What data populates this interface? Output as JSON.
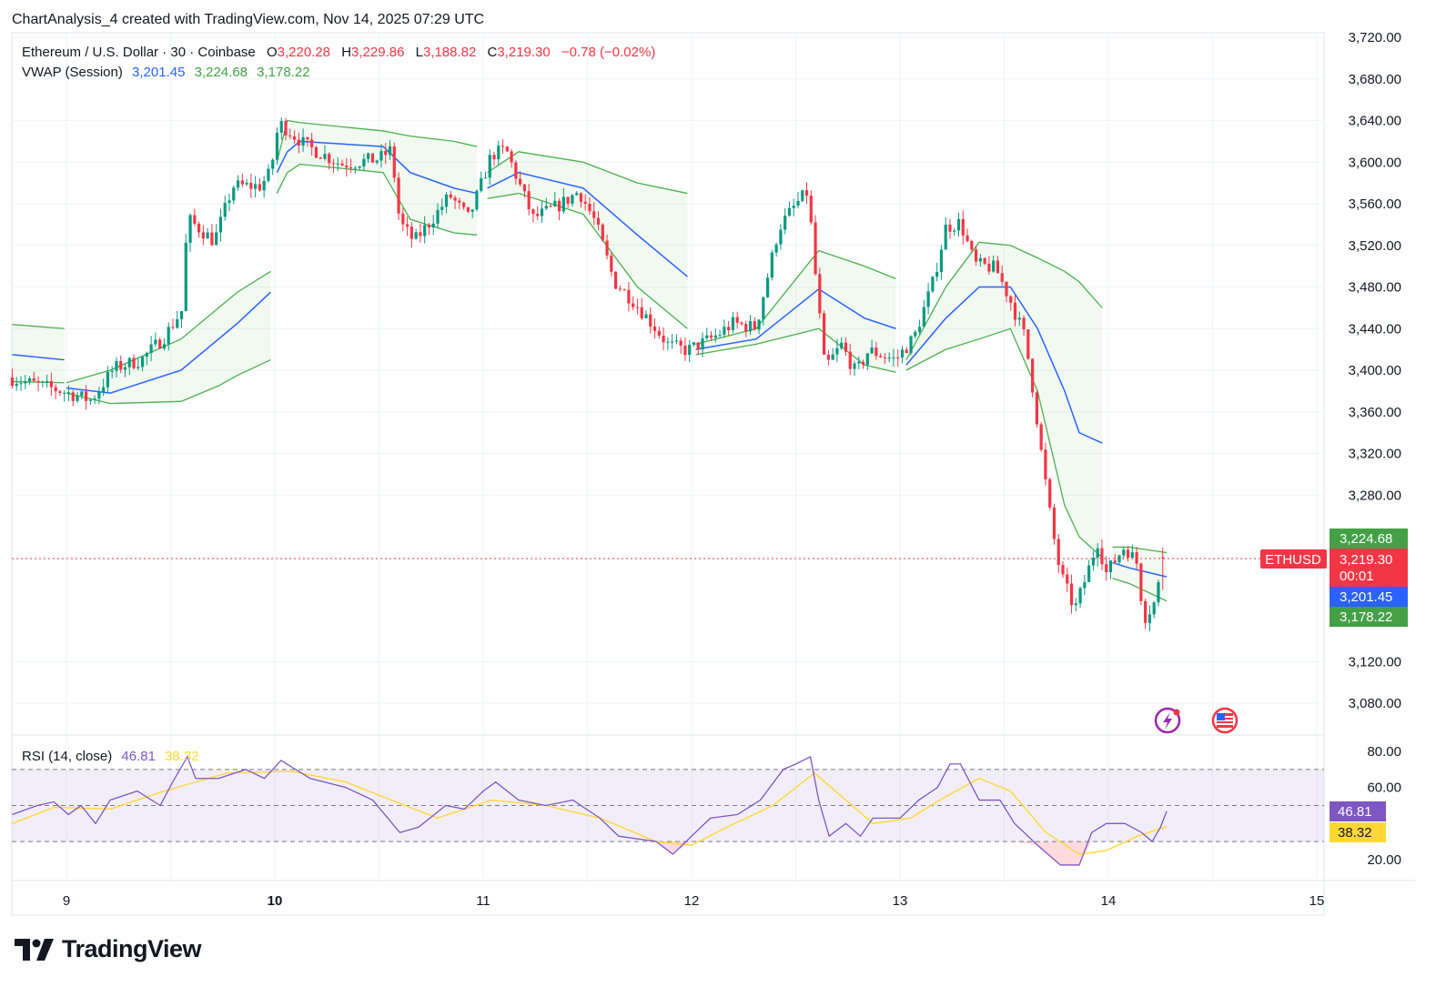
{
  "caption": "ChartAnalysis_4 created with TradingView.com, Nov 14, 2025 07:29 UTC",
  "legend": {
    "symbol": "Ethereum / U.S. Dollar · 30 · Coinbase",
    "o_label": "O",
    "o": "3,220.28",
    "h_label": "H",
    "h": "3,229.86",
    "l_label": "L",
    "l": "3,188.82",
    "c_label": "C",
    "c": "3,219.30",
    "change": "−0.78 (−0.02%)",
    "vwap_label": "VWAP (Session)",
    "vwap_mid": "3,201.45",
    "vwap_upper": "3,224.68",
    "vwap_lower": "3,178.22",
    "rsi_label": "RSI (14, close)",
    "rsi": "46.81",
    "rsi_ma": "38.32"
  },
  "price_tags": {
    "symbol": "ETHUSD",
    "last": "3,219.30",
    "countdown": "00:01",
    "vwap_upper": "3,224.68",
    "vwap_mid": "3,201.45",
    "vwap_lower": "3,178.22",
    "rsi": "46.81",
    "rsi_ma": "38.32"
  },
  "icons": [
    "lightning-icon",
    "us-flag-icon"
  ],
  "logo_text": "TradingView",
  "colors": {
    "up": "#089981",
    "down": "#f23645",
    "vwap": "#2962ff",
    "band": "#4caf50",
    "rsi": "#7e57c2",
    "rsi_ma": "#fdd835"
  },
  "chart_data": [
    {
      "type": "candlestick",
      "title": "Ethereum / U.S. Dollar · 30 · Coinbase",
      "x_ticks": [
        "9",
        "10",
        "11",
        "12",
        "13",
        "14",
        "15"
      ],
      "x_range_days": [
        8.74,
        15.05
      ],
      "y_ticks": [
        "3,720.00",
        "3,680.00",
        "3,640.00",
        "3,600.00",
        "3,560.00",
        "3,520.00",
        "3,480.00",
        "3,440.00",
        "3,400.00",
        "3,360.00",
        "3,320.00",
        "3,280.00",
        "3,120.00",
        "3,080.00"
      ],
      "ylim": [
        3080,
        3720
      ],
      "grid": true,
      "last_candle": {
        "open": 3220.28,
        "high": 3229.86,
        "low": 3188.82,
        "close": 3219.3
      },
      "close_series": [
        [
          8.74,
          3393
        ],
        [
          9.0,
          3380
        ],
        [
          9.14,
          3371
        ],
        [
          9.25,
          3402
        ],
        [
          9.38,
          3410
        ],
        [
          9.49,
          3432
        ],
        [
          9.58,
          3459
        ],
        [
          9.6,
          3546
        ],
        [
          9.73,
          3524
        ],
        [
          9.82,
          3577
        ],
        [
          9.95,
          3577
        ],
        [
          10.0,
          3590
        ],
        [
          10.04,
          3638
        ],
        [
          10.17,
          3616
        ],
        [
          10.34,
          3598
        ],
        [
          10.52,
          3603
        ],
        [
          10.58,
          3612
        ],
        [
          10.62,
          3542
        ],
        [
          10.69,
          3524
        ],
        [
          10.78,
          3546
        ],
        [
          10.86,
          3568
        ],
        [
          10.95,
          3546
        ],
        [
          11.0,
          3572
        ],
        [
          11.06,
          3607
        ],
        [
          11.13,
          3612
        ],
        [
          11.19,
          3581
        ],
        [
          11.26,
          3546
        ],
        [
          11.39,
          3559
        ],
        [
          11.48,
          3572
        ],
        [
          11.56,
          3542
        ],
        [
          11.65,
          3485
        ],
        [
          11.74,
          3467
        ],
        [
          11.83,
          3445
        ],
        [
          11.91,
          3424
        ],
        [
          12.0,
          3419
        ],
        [
          12.13,
          3432
        ],
        [
          12.22,
          3445
        ],
        [
          12.33,
          3441
        ],
        [
          12.39,
          3494
        ],
        [
          12.44,
          3537
        ],
        [
          12.52,
          3559
        ],
        [
          12.58,
          3572
        ],
        [
          12.61,
          3502
        ],
        [
          12.66,
          3402
        ],
        [
          12.74,
          3424
        ],
        [
          12.81,
          3397
        ],
        [
          12.87,
          3419
        ],
        [
          13.0,
          3410
        ],
        [
          13.09,
          3432
        ],
        [
          13.18,
          3485
        ],
        [
          13.24,
          3537
        ],
        [
          13.31,
          3542
        ],
        [
          13.38,
          3502
        ],
        [
          13.48,
          3498
        ],
        [
          13.55,
          3467
        ],
        [
          13.62,
          3432
        ],
        [
          13.66,
          3380
        ],
        [
          13.7,
          3319
        ],
        [
          13.75,
          3249
        ],
        [
          13.79,
          3205
        ],
        [
          13.86,
          3170
        ],
        [
          13.92,
          3205
        ],
        [
          13.97,
          3236
        ],
        [
          14.01,
          3205
        ],
        [
          14.1,
          3231
        ],
        [
          14.16,
          3214
        ],
        [
          14.19,
          3161
        ],
        [
          14.25,
          3179
        ],
        [
          14.28,
          3219.3
        ]
      ],
      "vwap_sessions": [
        [
          [
            8.74,
            3444,
            3415,
            3389
          ],
          [
            8.99,
            3440,
            3410,
            3388
          ]
        ],
        [
          [
            9.0,
            3388,
            3383,
            3378
          ],
          [
            9.21,
            3400,
            3378,
            3368
          ],
          [
            9.55,
            3430,
            3400,
            3370
          ],
          [
            9.73,
            3460,
            3430,
            3385
          ],
          [
            9.82,
            3475,
            3445,
            3395
          ],
          [
            9.98,
            3495,
            3475,
            3410
          ]
        ],
        [
          [
            10.01,
            3600,
            3590,
            3570
          ],
          [
            10.06,
            3640,
            3610,
            3590
          ],
          [
            10.12,
            3638,
            3620,
            3598
          ],
          [
            10.52,
            3630,
            3615,
            3590
          ],
          [
            10.65,
            3625,
            3590,
            3545
          ],
          [
            10.86,
            3620,
            3575,
            3532
          ],
          [
            10.97,
            3615,
            3570,
            3530
          ]
        ],
        [
          [
            11.02,
            3590,
            3575,
            3565
          ],
          [
            11.17,
            3610,
            3590,
            3570
          ],
          [
            11.48,
            3600,
            3575,
            3550
          ],
          [
            11.74,
            3580,
            3530,
            3480
          ],
          [
            11.98,
            3570,
            3490,
            3440
          ]
        ],
        [
          [
            12.02,
            3425,
            3420,
            3415
          ],
          [
            12.31,
            3440,
            3430,
            3425
          ],
          [
            12.61,
            3515,
            3478,
            3440
          ],
          [
            12.83,
            3500,
            3450,
            3405
          ],
          [
            12.98,
            3488,
            3440,
            3398
          ]
        ],
        [
          [
            13.03,
            3410,
            3405,
            3400
          ],
          [
            13.22,
            3480,
            3450,
            3420
          ],
          [
            13.38,
            3523,
            3480,
            3430
          ],
          [
            13.53,
            3520,
            3480,
            3440
          ],
          [
            13.66,
            3508,
            3440,
            3380
          ],
          [
            13.79,
            3495,
            3380,
            3270
          ],
          [
            13.86,
            3485,
            3340,
            3240
          ],
          [
            13.97,
            3460,
            3330,
            3220
          ]
        ],
        [
          [
            14.02,
            3230,
            3215,
            3200
          ],
          [
            14.1,
            3230,
            3210,
            3195
          ],
          [
            14.28,
            3224.68,
            3201.45,
            3178.22
          ]
        ]
      ]
    },
    {
      "type": "line",
      "title": "RSI (14, close)",
      "y_ticks": [
        "80.00",
        "60.00",
        "20.00"
      ],
      "ylim": [
        10,
        87
      ],
      "bands": [
        30,
        50,
        70
      ],
      "series": [
        {
          "name": "RSI",
          "values": [
            [
              8.74,
              45
            ],
            [
              8.86,
              50
            ],
            [
              8.94,
              52
            ],
            [
              9.01,
              45
            ],
            [
              9.07,
              50
            ],
            [
              9.14,
              40
            ],
            [
              9.21,
              53
            ],
            [
              9.34,
              58
            ],
            [
              9.45,
              50
            ],
            [
              9.51,
              63
            ],
            [
              9.58,
              77
            ],
            [
              9.62,
              65
            ],
            [
              9.73,
              65
            ],
            [
              9.86,
              70
            ],
            [
              9.95,
              65
            ],
            [
              10.03,
              75
            ],
            [
              10.17,
              65
            ],
            [
              10.34,
              60
            ],
            [
              10.47,
              53
            ],
            [
              10.6,
              35
            ],
            [
              10.69,
              38
            ],
            [
              10.82,
              50
            ],
            [
              10.91,
              48
            ],
            [
              11.0,
              58
            ],
            [
              11.06,
              63
            ],
            [
              11.17,
              53
            ],
            [
              11.3,
              50
            ],
            [
              11.43,
              53
            ],
            [
              11.56,
              43
            ],
            [
              11.65,
              33
            ],
            [
              11.83,
              30
            ],
            [
              11.91,
              23
            ],
            [
              12.0,
              33
            ],
            [
              12.09,
              43
            ],
            [
              12.22,
              45
            ],
            [
              12.33,
              53
            ],
            [
              12.44,
              70
            ],
            [
              12.5,
              73
            ],
            [
              12.57,
              77
            ],
            [
              12.61,
              53
            ],
            [
              12.66,
              33
            ],
            [
              12.74,
              40
            ],
            [
              12.81,
              33
            ],
            [
              12.87,
              43
            ],
            [
              13.0,
              43
            ],
            [
              13.09,
              53
            ],
            [
              13.18,
              60
            ],
            [
              13.24,
              73
            ],
            [
              13.29,
              73
            ],
            [
              13.38,
              53
            ],
            [
              13.48,
              53
            ],
            [
              13.55,
              40
            ],
            [
              13.66,
              28
            ],
            [
              13.77,
              17
            ],
            [
              13.86,
              17
            ],
            [
              13.92,
              35
            ],
            [
              13.99,
              40
            ],
            [
              14.08,
              40
            ],
            [
              14.16,
              35
            ],
            [
              14.21,
              30
            ],
            [
              14.25,
              38
            ],
            [
              14.28,
              46.81
            ]
          ]
        },
        {
          "name": "RSI-based MA",
          "values": [
            [
              8.74,
              40
            ],
            [
              8.94,
              49
            ],
            [
              9.21,
              48
            ],
            [
              9.47,
              58
            ],
            [
              9.77,
              68
            ],
            [
              10.08,
              69
            ],
            [
              10.34,
              63
            ],
            [
              10.56,
              53
            ],
            [
              10.78,
              43
            ],
            [
              11.04,
              53
            ],
            [
              11.3,
              50
            ],
            [
              11.56,
              43
            ],
            [
              11.83,
              30
            ],
            [
              12.0,
              28
            ],
            [
              12.17,
              38
            ],
            [
              12.39,
              50
            ],
            [
              12.59,
              68
            ],
            [
              12.74,
              53
            ],
            [
              12.87,
              40
            ],
            [
              13.05,
              43
            ],
            [
              13.22,
              55
            ],
            [
              13.38,
              65
            ],
            [
              13.53,
              58
            ],
            [
              13.7,
              35
            ],
            [
              13.86,
              23
            ],
            [
              13.99,
              25
            ],
            [
              14.14,
              33
            ],
            [
              14.28,
              38.32
            ]
          ]
        }
      ]
    }
  ]
}
